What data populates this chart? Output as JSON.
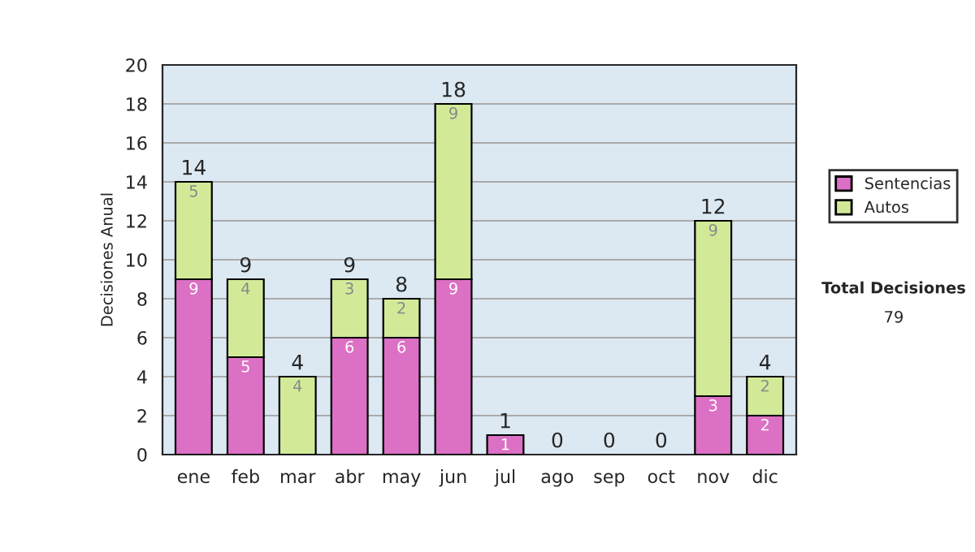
{
  "chart_data": {
    "type": "bar",
    "stacked": true,
    "ylabel": "Decisiones Anual",
    "categories": [
      "ene",
      "feb",
      "mar",
      "abr",
      "may",
      "jun",
      "jul",
      "ago",
      "sep",
      "oct",
      "nov",
      "dic"
    ],
    "series": [
      {
        "name": "Sentencias",
        "color": "#dc70c4",
        "values": [
          9,
          5,
          0,
          6,
          6,
          9,
          1,
          0,
          0,
          0,
          3,
          2
        ],
        "value_labels": [
          "9",
          "5",
          null,
          "6",
          "6",
          "9",
          "1",
          null,
          null,
          null,
          "3",
          "2"
        ]
      },
      {
        "name": "Autos",
        "color": "#d2ea98",
        "values": [
          5,
          4,
          4,
          3,
          2,
          9,
          0,
          0,
          0,
          0,
          9,
          2
        ],
        "value_labels": [
          "5",
          "4",
          "4",
          "3",
          "2",
          "9",
          null,
          null,
          null,
          null,
          "9",
          "2"
        ]
      }
    ],
    "totals": [
      "14",
      "9",
      "4",
      "9",
      "8",
      "18",
      "1",
      "0",
      "0",
      "0",
      "12",
      "4"
    ],
    "ylim": [
      0,
      20
    ],
    "yticks": [
      0,
      2,
      4,
      6,
      8,
      10,
      12,
      14,
      16,
      18,
      20
    ],
    "grid": "y",
    "legend": "right",
    "annotations": [
      "Total Decisiones",
      "79"
    ]
  }
}
